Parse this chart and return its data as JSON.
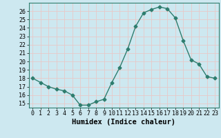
{
  "x": [
    0,
    1,
    2,
    3,
    4,
    5,
    6,
    7,
    8,
    9,
    10,
    11,
    12,
    13,
    14,
    15,
    16,
    17,
    18,
    19,
    20,
    21,
    22,
    23
  ],
  "y": [
    18,
    17.5,
    17,
    16.7,
    16.5,
    16,
    14.8,
    14.8,
    15.2,
    15.5,
    17.5,
    19.3,
    21.5,
    24.2,
    25.8,
    26.2,
    26.5,
    26.3,
    25.2,
    22.5,
    20.2,
    19.7,
    18.2,
    18
  ],
  "line_color": "#2e7d6e",
  "marker": "D",
  "marker_size": 2.5,
  "xlabel": "Humidex (Indice chaleur)",
  "ylim": [
    14.5,
    27.0
  ],
  "xlim": [
    -0.5,
    23.5
  ],
  "yticks": [
    15,
    16,
    17,
    18,
    19,
    20,
    21,
    22,
    23,
    24,
    25,
    26
  ],
  "xticks": [
    0,
    1,
    2,
    3,
    4,
    5,
    6,
    7,
    8,
    9,
    10,
    11,
    12,
    13,
    14,
    15,
    16,
    17,
    18,
    19,
    20,
    21,
    22,
    23
  ],
  "bg_color": "#cde8f0",
  "grid_color": "#e8c8c8",
  "tick_fontsize": 6,
  "xlabel_fontsize": 7.5,
  "linewidth": 1.0
}
